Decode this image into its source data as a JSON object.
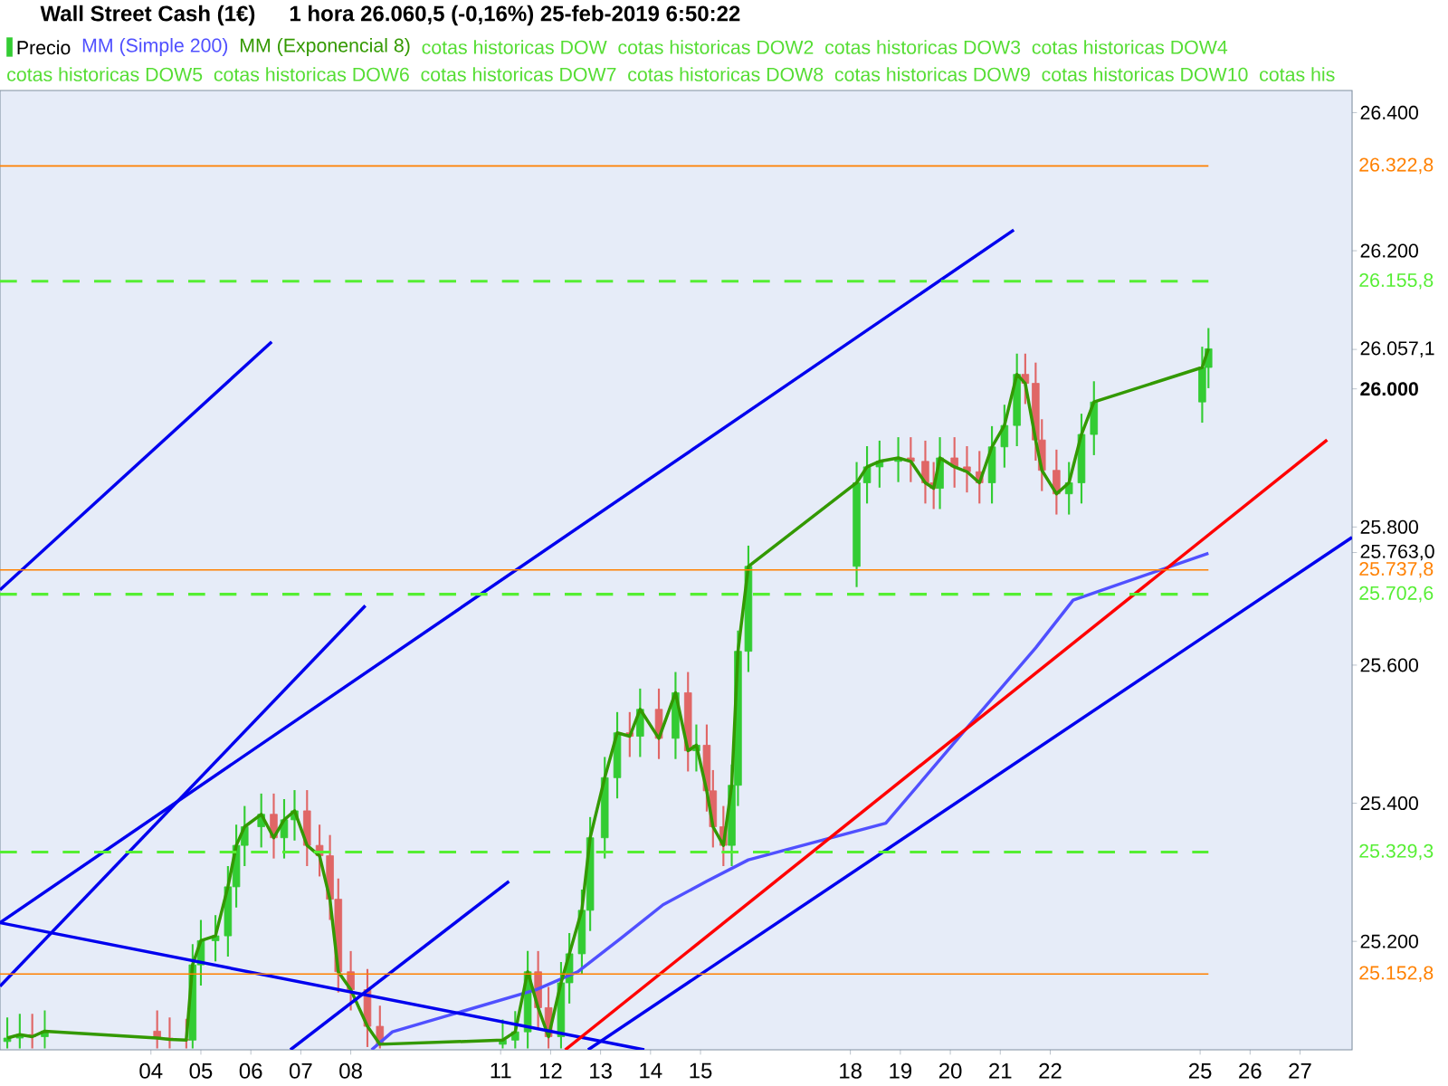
{
  "chart_data": {
    "type": "candlestick",
    "title": "Wall Street Cash (1€)",
    "subtitle": "1 hora   26.060,5 (-0,16%)   25-feb-2019 6:50:22",
    "xlim": [
      "2019-01-31T23:30",
      "2019-02-28T01:00"
    ],
    "ylim": [
      25043,
      26432
    ],
    "xticks": [
      {
        "value": "2019-02-04",
        "label": "04"
      },
      {
        "value": "2019-02-05",
        "label": "05"
      },
      {
        "value": "2019-02-06",
        "label": "06"
      },
      {
        "value": "2019-02-07",
        "label": "07"
      },
      {
        "value": "2019-02-08",
        "label": "08"
      },
      {
        "value": "2019-02-11",
        "label": "11"
      },
      {
        "value": "2019-02-12",
        "label": "12"
      },
      {
        "value": "2019-02-13",
        "label": "13"
      },
      {
        "value": "2019-02-14",
        "label": "14"
      },
      {
        "value": "2019-02-15",
        "label": "15"
      },
      {
        "value": "2019-02-18",
        "label": "18"
      },
      {
        "value": "2019-02-19",
        "label": "19"
      },
      {
        "value": "2019-02-20",
        "label": "20"
      },
      {
        "value": "2019-02-21",
        "label": "21"
      },
      {
        "value": "2019-02-22",
        "label": "22"
      },
      {
        "value": "2019-02-25",
        "label": "25"
      },
      {
        "value": "2019-02-26",
        "label": "26"
      },
      {
        "value": "2019-02-27",
        "label": "27"
      }
    ],
    "yticks": [
      {
        "value": 25200,
        "label": "25.200"
      },
      {
        "value": 25400,
        "label": "25.400"
      },
      {
        "value": 25600,
        "label": "25.600"
      },
      {
        "value": 25800,
        "label": "25.800"
      },
      {
        "value": 25763,
        "label": "25.763,0"
      },
      {
        "value": 26000,
        "label": "**26.000**"
      },
      {
        "value": 26057.1,
        "label": "26.057,1"
      },
      {
        "value": 26200,
        "label": "26.200"
      },
      {
        "value": 26400,
        "label": "26.400"
      }
    ],
    "legend": "top left",
    "marker": "none",
    "series": [
      {
        "name": "Precio",
        "x": [
          "2019-02-01T03:00",
          "2019-02-01T09:00",
          "2019-02-01T15:00",
          "2019-02-01T21:00",
          "2019-02-04T03:00",
          "2019-02-04T09:00",
          "2019-02-04T17:00",
          "2019-02-04T20:00",
          "2019-02-05T00:00",
          "2019-02-05T07:00",
          "2019-02-05T13:00",
          "2019-02-05T17:00",
          "2019-02-05T21:00",
          "2019-02-06T05:00",
          "2019-02-06T11:00",
          "2019-02-06T16:00",
          "2019-02-06T21:00",
          "2019-02-07T03:00",
          "2019-02-07T09:00",
          "2019-02-07T14:00",
          "2019-02-07T18:00",
          "2019-02-08T00:00",
          "2019-02-08T08:00",
          "2019-02-08T14:00",
          "2019-02-11T01:00",
          "2019-02-11T07:00",
          "2019-02-11T13:00",
          "2019-02-11T18:00",
          "2019-02-11T23:00",
          "2019-02-12T05:00",
          "2019-02-12T09:00",
          "2019-02-12T15:00",
          "2019-02-12T19:00",
          "2019-02-13T02:00",
          "2019-02-13T08:00",
          "2019-02-13T14:00",
          "2019-02-13T19:00",
          "2019-02-14T04:00",
          "2019-02-14T12:00",
          "2019-02-14T18:00",
          "2019-02-14T22:00",
          "2019-02-15T03:00",
          "2019-02-15T06:00",
          "2019-02-15T11:00",
          "2019-02-15T15:00",
          "2019-02-15T18:00",
          "2019-02-15T23:00",
          "2019-02-18T03:00",
          "2019-02-18T08:00",
          "2019-02-18T14:00",
          "2019-02-18T23:00",
          "2019-02-19T05:00",
          "2019-02-19T12:00",
          "2019-02-19T16:00",
          "2019-02-19T19:00",
          "2019-02-20T02:00",
          "2019-02-20T08:00",
          "2019-02-20T14:00",
          "2019-02-20T20:00",
          "2019-02-21T02:00",
          "2019-02-21T08:00",
          "2019-02-21T12:00",
          "2019-02-21T17:00",
          "2019-02-21T20:00",
          "2019-02-22T03:00",
          "2019-02-22T09:00",
          "2019-02-22T15:00",
          "2019-02-22T21:00",
          "2019-02-25T01:00",
          "2019-02-25T04:00"
        ],
        "ohlc": [
          [
            25055,
            25090,
            25045,
            25060
          ],
          [
            25060,
            25095,
            25045,
            25065
          ],
          [
            25065,
            25095,
            25045,
            25062
          ],
          [
            25062,
            25100,
            25045,
            25070
          ],
          [
            25070,
            25100,
            25045,
            25060
          ],
          [
            25060,
            25090,
            25045,
            25058
          ],
          [
            25058,
            25088,
            25045,
            25057
          ],
          [
            25057,
            25196,
            25045,
            25166
          ],
          [
            25166,
            25231,
            25136,
            25201
          ],
          [
            25201,
            25238,
            25171,
            25208
          ],
          [
            25208,
            25309,
            25178,
            25279
          ],
          [
            25279,
            25369,
            25249,
            25339
          ],
          [
            25339,
            25396,
            25309,
            25366
          ],
          [
            25366,
            25414,
            25336,
            25384
          ],
          [
            25384,
            25414,
            25320,
            25350
          ],
          [
            25350,
            25406,
            25320,
            25376
          ],
          [
            25376,
            25419,
            25346,
            25389
          ],
          [
            25389,
            25419,
            25309,
            25339
          ],
          [
            25339,
            25369,
            25294,
            25324
          ],
          [
            25324,
            25354,
            25231,
            25261
          ],
          [
            25261,
            25291,
            25126,
            25156
          ],
          [
            25156,
            25186,
            25100,
            25130
          ],
          [
            25130,
            25160,
            25047,
            25077
          ],
          [
            25077,
            25107,
            25045,
            25051
          ],
          [
            25051,
            25087,
            25045,
            25057
          ],
          [
            25057,
            25099,
            25045,
            25069
          ],
          [
            25069,
            25186,
            25045,
            25156
          ],
          [
            25156,
            25186,
            25074,
            25104
          ],
          [
            25104,
            25134,
            25045,
            25062
          ],
          [
            25062,
            25170,
            25045,
            25140
          ],
          [
            25140,
            25212,
            25110,
            25182
          ],
          [
            25182,
            25275,
            25152,
            25245
          ],
          [
            25245,
            25380,
            25215,
            25350
          ],
          [
            25350,
            25467,
            25320,
            25437
          ],
          [
            25437,
            25532,
            25407,
            25502
          ],
          [
            25502,
            25532,
            25467,
            25497
          ],
          [
            25497,
            25566,
            25467,
            25536
          ],
          [
            25536,
            25566,
            25464,
            25494
          ],
          [
            25494,
            25590,
            25464,
            25560
          ],
          [
            25560,
            25590,
            25446,
            25476
          ],
          [
            25476,
            25514,
            25446,
            25484
          ],
          [
            25484,
            25514,
            25388,
            25418
          ],
          [
            25418,
            25448,
            25336,
            25366
          ],
          [
            25366,
            25396,
            25309,
            25339
          ],
          [
            25339,
            25456,
            25309,
            25426
          ],
          [
            25426,
            25650,
            25396,
            25620
          ],
          [
            25620,
            25773,
            25590,
            25743
          ],
          [
            25743,
            25894,
            25713,
            25864
          ],
          [
            25864,
            25917,
            25834,
            25887
          ],
          [
            25887,
            25925,
            25857,
            25895
          ],
          [
            25895,
            25930,
            25865,
            25900
          ],
          [
            25900,
            25930,
            25865,
            25895
          ],
          [
            25895,
            25925,
            25834,
            25864
          ],
          [
            25864,
            25894,
            25826,
            25856
          ],
          [
            25856,
            25930,
            25826,
            25900
          ],
          [
            25900,
            25930,
            25857,
            25887
          ],
          [
            25887,
            25917,
            25850,
            25880
          ],
          [
            25880,
            25910,
            25834,
            25864
          ],
          [
            25864,
            25946,
            25834,
            25916
          ],
          [
            25916,
            25977,
            25886,
            25947
          ],
          [
            25947,
            26051,
            25917,
            26021
          ],
          [
            26021,
            26051,
            25978,
            26008
          ],
          [
            26008,
            26038,
            25896,
            25926
          ],
          [
            25926,
            25956,
            25852,
            25882
          ],
          [
            25882,
            25912,
            25818,
            25848
          ],
          [
            25848,
            25894,
            25818,
            25864
          ],
          [
            25864,
            25964,
            25834,
            25934
          ],
          [
            25934,
            26011,
            25904,
            25981
          ],
          [
            25981,
            26061,
            25951,
            26031
          ],
          [
            26031,
            26088,
            26001,
            26058
          ]
        ]
      },
      {
        "name": "MM (Simple 200)",
        "type": "line",
        "color": "#5050ff",
        "x": [
          "2019-02-08T10:00",
          "2019-02-08T20:00",
          "2019-02-11T17:00",
          "2019-02-12T13:00",
          "2019-02-13T10:00",
          "2019-02-14T06:00",
          "2019-02-15T03:00",
          "2019-02-15T23:00",
          "2019-02-18T17:00",
          "2019-02-20T06:00",
          "2019-02-21T17:00",
          "2019-02-22T11:00",
          "2019-02-25T04:00"
        ],
        "values": [
          25043,
          25069,
          25130,
          25156,
          25205,
          25253,
          25287,
          25318,
          25371,
          25502,
          25625,
          25694,
          25762
        ]
      },
      {
        "name": "MM (Exponencial 8)",
        "type": "line",
        "color": "#339900",
        "x": [
          "2019-02-01T03:00",
          "2019-02-01T09:00",
          "2019-02-01T15:00",
          "2019-02-01T21:00",
          "2019-02-04T03:00",
          "2019-02-04T09:00",
          "2019-02-04T17:00",
          "2019-02-04T20:00",
          "2019-02-05T00:00",
          "2019-02-05T07:00",
          "2019-02-05T13:00",
          "2019-02-05T17:00",
          "2019-02-05T21:00",
          "2019-02-06T05:00",
          "2019-02-06T11:00",
          "2019-02-06T16:00",
          "2019-02-06T21:00",
          "2019-02-07T03:00",
          "2019-02-07T09:00",
          "2019-02-07T14:00",
          "2019-02-07T18:00",
          "2019-02-08T00:00",
          "2019-02-08T08:00",
          "2019-02-08T14:00",
          "2019-02-11T01:00",
          "2019-02-11T07:00",
          "2019-02-11T13:00",
          "2019-02-11T18:00",
          "2019-02-11T23:00",
          "2019-02-12T05:00",
          "2019-02-12T09:00",
          "2019-02-12T15:00",
          "2019-02-12T19:00",
          "2019-02-13T02:00",
          "2019-02-13T08:00",
          "2019-02-13T14:00",
          "2019-02-13T19:00",
          "2019-02-14T04:00",
          "2019-02-14T12:00",
          "2019-02-14T18:00",
          "2019-02-14T22:00",
          "2019-02-15T03:00",
          "2019-02-15T06:00",
          "2019-02-15T11:00",
          "2019-02-15T15:00",
          "2019-02-15T18:00",
          "2019-02-15T23:00",
          "2019-02-18T03:00",
          "2019-02-18T08:00",
          "2019-02-18T14:00",
          "2019-02-18T23:00",
          "2019-02-19T05:00",
          "2019-02-19T12:00",
          "2019-02-19T16:00",
          "2019-02-19T19:00",
          "2019-02-20T02:00",
          "2019-02-20T08:00",
          "2019-02-20T14:00",
          "2019-02-20T20:00",
          "2019-02-21T02:00",
          "2019-02-21T08:00",
          "2019-02-21T12:00",
          "2019-02-21T17:00",
          "2019-02-21T20:00",
          "2019-02-22T03:00",
          "2019-02-22T09:00",
          "2019-02-22T15:00",
          "2019-02-22T21:00",
          "2019-02-25T01:00",
          "2019-02-25T04:00"
        ],
        "values": [
          25060,
          25065,
          25062,
          25070,
          25060,
          25058,
          25057,
          25166,
          25201,
          25208,
          25279,
          25339,
          25366,
          25384,
          25350,
          25376,
          25389,
          25339,
          25324,
          25261,
          25156,
          25130,
          25077,
          25051,
          25057,
          25069,
          25156,
          25104,
          25062,
          25140,
          25182,
          25245,
          25350,
          25437,
          25502,
          25497,
          25536,
          25494,
          25560,
          25476,
          25484,
          25418,
          25366,
          25339,
          25426,
          25620,
          25743,
          25864,
          25887,
          25895,
          25900,
          25895,
          25864,
          25856,
          25900,
          25887,
          25880,
          25864,
          25916,
          25947,
          26021,
          26008,
          25926,
          25882,
          25848,
          25864,
          25934,
          25981,
          26031,
          26058
        ]
      },
      {
        "type": "line",
        "color": "#0000ee",
        "x": [
          "2019-01-31T23:30",
          "2019-02-06T10:00"
        ],
        "values": [
          25709,
          26068
        ]
      },
      {
        "type": "line",
        "color": "#0000ee",
        "x": [
          "2019-01-31T23:30",
          "2019-02-21T06:30"
        ],
        "values": [
          25227,
          26230
        ]
      },
      {
        "type": "line",
        "color": "#0000ee",
        "x": [
          "2019-01-31T23:30",
          "2019-02-08T07:00"
        ],
        "values": [
          25135,
          25686
        ]
      },
      {
        "type": "line",
        "color": "#0000ee",
        "x": [
          "2019-01-31T23:30",
          "2019-02-13T21:00"
        ],
        "values": [
          25227,
          25043
        ]
      },
      {
        "type": "line",
        "color": "#0000ee",
        "x": [
          "2019-02-06T19:00",
          "2019-02-11T04:00"
        ],
        "values": [
          25043,
          25287
        ]
      },
      {
        "type": "line",
        "color": "#0000ee",
        "x": [
          "2019-02-12T18:00",
          "2019-02-28T01:00"
        ],
        "values": [
          25043,
          25785
        ]
      },
      {
        "type": "line",
        "color": "#ff0000",
        "x": [
          "2019-02-12T07:00",
          "2019-02-27T13:00"
        ],
        "values": [
          25043,
          25926
        ]
      }
    ],
    "ref_lines": [
      {
        "axis": "y",
        "value": 26322.8,
        "label": "26.322,8",
        "color": "#ff8000",
        "line_style": "solid"
      },
      {
        "axis": "y",
        "value": 26155.8,
        "label": "26.155,8",
        "color": "#55ee33",
        "line_style": "dashed"
      },
      {
        "axis": "y",
        "value": 25737.8,
        "label": "25.737,8",
        "color": "#ff8000",
        "line_style": "solid"
      },
      {
        "axis": "y",
        "value": 25702.6,
        "label": "25.702,6",
        "color": "#55ee33",
        "line_style": "dashed"
      },
      {
        "axis": "y",
        "value": 25329.3,
        "label": "25.329,3",
        "color": "#55ee33",
        "line_style": "dashed"
      },
      {
        "axis": "y",
        "value": 25152.8,
        "label": "25.152,8",
        "color": "#ff8000",
        "line_style": "solid"
      }
    ],
    "annotations": [
      "cotas historicas DOW",
      "cotas historicas DOW2",
      "cotas historicas DOW3",
      "cotas historicas DOW4",
      "cotas historicas DOW5",
      "cotas historicas DOW6",
      "cotas historicas DOW7",
      "cotas historicas DOW8",
      "cotas historicas DOW9",
      "cotas historicas DOW10",
      "cotas his"
    ]
  }
}
